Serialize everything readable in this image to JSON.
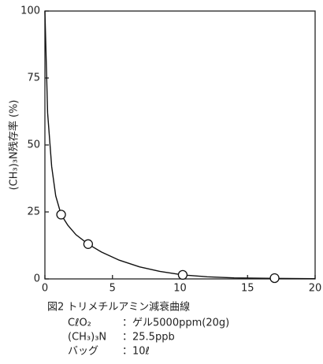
{
  "chart_data": {
    "type": "scatter",
    "title": "図2 トリメチルアミン減衰曲線",
    "ylabel": "(CH₃)₃N残存率 (%)",
    "notes": [
      [
        "CℓO₂",
        "：ゲル5000ppm(20g)"
      ],
      [
        "(CH₃)₃N",
        "：25.5ppb"
      ],
      [
        "バッグ",
        "：10ℓ"
      ]
    ],
    "xlim": [
      0,
      20
    ],
    "xticks": [
      0,
      5,
      10,
      15,
      20
    ],
    "ylim": [
      0,
      100
    ],
    "yticks": [
      0,
      25,
      50,
      75,
      100
    ],
    "color": "#111111",
    "series": [
      {
        "type": "line",
        "x": [
          0,
          0.2,
          0.5,
          0.8,
          1.2,
          1.7,
          2.3,
          3.2,
          4.2,
          5.5,
          7,
          8.5,
          10.2,
          12,
          14,
          17,
          20
        ],
        "values": [
          100,
          62,
          42,
          31,
          24,
          20,
          16.5,
          13,
          10,
          7,
          4.5,
          2.8,
          1.5,
          0.8,
          0.4,
          0.2,
          0.1
        ]
      },
      {
        "type": "scatter",
        "x": [
          1.2,
          3.2,
          10.2,
          17
        ],
        "values": [
          24,
          13,
          1.5,
          0.3
        ]
      }
    ]
  }
}
